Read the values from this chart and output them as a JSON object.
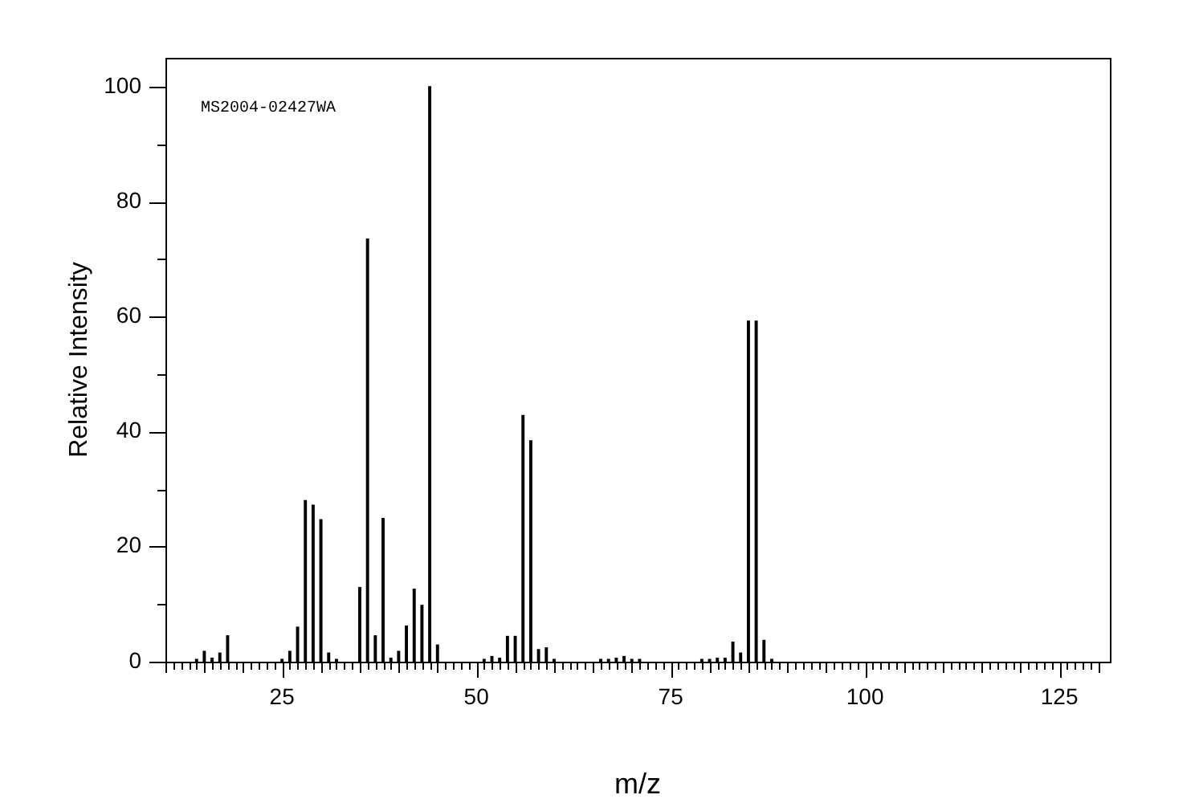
{
  "chart_data": {
    "type": "bar",
    "xlabel": "m/z",
    "ylabel": "Relative Intensity",
    "annotations": [
      "MS2004-02427WA"
    ],
    "color": "#000000",
    "x": [
      14,
      15,
      16,
      17,
      18,
      25,
      26,
      27,
      28,
      29,
      30,
      31,
      32,
      35,
      36,
      37,
      38,
      39,
      40,
      41,
      42,
      43,
      44,
      45,
      51,
      52,
      53,
      54,
      55,
      56,
      57,
      58,
      59,
      60,
      66,
      67,
      68,
      69,
      70,
      71,
      79,
      80,
      81,
      82,
      83,
      84,
      85,
      86,
      87,
      88
    ],
    "values": [
      0.4,
      1.8,
      0.6,
      1.5,
      4.5,
      0.4,
      1.8,
      6.0,
      28.0,
      27.2,
      24.7,
      1.5,
      0.4,
      12.9,
      73.5,
      4.5,
      24.9,
      0.6,
      1.8,
      6.2,
      12.6,
      9.8,
      100,
      2.9,
      0.4,
      0.9,
      0.6,
      4.4,
      4.4,
      42.8,
      38.4,
      2.1,
      2.4,
      0.4,
      0.4,
      0.4,
      0.6,
      0.9,
      0.4,
      0.4,
      0.4,
      0.4,
      0.6,
      0.6,
      3.4,
      1.5,
      59.2,
      59.2,
      3.7,
      0.4
    ],
    "xlim": [
      10,
      131.5
    ],
    "ylim": [
      0,
      105
    ],
    "xticks": [
      {
        "value": 10,
        "label": null
      },
      {
        "value": 11,
        "label": null
      },
      {
        "value": 12,
        "label": null
      },
      {
        "value": 13,
        "label": null
      },
      {
        "value": 14,
        "label": null
      },
      {
        "value": 15,
        "label": null
      },
      {
        "value": 16,
        "label": null
      },
      {
        "value": 17,
        "label": null
      },
      {
        "value": 18,
        "label": null
      },
      {
        "value": 19,
        "label": null
      },
      {
        "value": 20,
        "label": null
      },
      {
        "value": 21,
        "label": null
      },
      {
        "value": 22,
        "label": null
      },
      {
        "value": 23,
        "label": null
      },
      {
        "value": 24,
        "label": null
      },
      25,
      {
        "value": 26,
        "label": null
      },
      {
        "value": 27,
        "label": null
      },
      {
        "value": 28,
        "label": null
      },
      {
        "value": 29,
        "label": null
      },
      {
        "value": 30,
        "label": null
      },
      {
        "value": 31,
        "label": null
      },
      {
        "value": 32,
        "label": null
      },
      {
        "value": 33,
        "label": null
      },
      {
        "value": 34,
        "label": null
      },
      {
        "value": 35,
        "label": null
      },
      {
        "value": 36,
        "label": null
      },
      {
        "value": 37,
        "label": null
      },
      {
        "value": 38,
        "label": null
      },
      {
        "value": 39,
        "label": null
      },
      {
        "value": 40,
        "label": null
      },
      {
        "value": 41,
        "label": null
      },
      {
        "value": 42,
        "label": null
      },
      {
        "value": 43,
        "label": null
      },
      {
        "value": 44,
        "label": null
      },
      {
        "value": 45,
        "label": null
      },
      {
        "value": 46,
        "label": null
      },
      {
        "value": 47,
        "label": null
      },
      {
        "value": 48,
        "label": null
      },
      {
        "value": 49,
        "label": null
      },
      50,
      {
        "value": 51,
        "label": null
      },
      {
        "value": 52,
        "label": null
      },
      {
        "value": 53,
        "label": null
      },
      {
        "value": 54,
        "label": null
      },
      {
        "value": 55,
        "label": null
      },
      {
        "value": 56,
        "label": null
      },
      {
        "value": 57,
        "label": null
      },
      {
        "value": 58,
        "label": null
      },
      {
        "value": 59,
        "label": null
      },
      {
        "value": 60,
        "label": null
      },
      {
        "value": 61,
        "label": null
      },
      {
        "value": 62,
        "label": null
      },
      {
        "value": 63,
        "label": null
      },
      {
        "value": 64,
        "label": null
      },
      {
        "value": 65,
        "label": null
      },
      {
        "value": 66,
        "label": null
      },
      {
        "value": 67,
        "label": null
      },
      {
        "value": 68,
        "label": null
      },
      {
        "value": 69,
        "label": null
      },
      {
        "value": 70,
        "label": null
      },
      {
        "value": 71,
        "label": null
      },
      {
        "value": 72,
        "label": null
      },
      {
        "value": 73,
        "label": null
      },
      {
        "value": 74,
        "label": null
      },
      75,
      {
        "value": 76,
        "label": null
      },
      {
        "value": 77,
        "label": null
      },
      {
        "value": 78,
        "label": null
      },
      {
        "value": 79,
        "label": null
      },
      {
        "value": 80,
        "label": null
      },
      {
        "value": 81,
        "label": null
      },
      {
        "value": 82,
        "label": null
      },
      {
        "value": 83,
        "label": null
      },
      {
        "value": 84,
        "label": null
      },
      {
        "value": 85,
        "label": null
      },
      {
        "value": 86,
        "label": null
      },
      {
        "value": 87,
        "label": null
      },
      {
        "value": 88,
        "label": null
      },
      {
        "value": 89,
        "label": null
      },
      {
        "value": 90,
        "label": null
      },
      {
        "value": 91,
        "label": null
      },
      {
        "value": 92,
        "label": null
      },
      {
        "value": 93,
        "label": null
      },
      {
        "value": 94,
        "label": null
      },
      {
        "value": 95,
        "label": null
      },
      {
        "value": 96,
        "label": null
      },
      {
        "value": 97,
        "label": null
      },
      {
        "value": 98,
        "label": null
      },
      {
        "value": 99,
        "label": null
      },
      100,
      {
        "value": 101,
        "label": null
      },
      {
        "value": 102,
        "label": null
      },
      {
        "value": 103,
        "label": null
      },
      {
        "value": 104,
        "label": null
      },
      {
        "value": 105,
        "label": null
      },
      {
        "value": 106,
        "label": null
      },
      {
        "value": 107,
        "label": null
      },
      {
        "value": 108,
        "label": null
      },
      {
        "value": 109,
        "label": null
      },
      {
        "value": 110,
        "label": null
      },
      {
        "value": 111,
        "label": null
      },
      {
        "value": 112,
        "label": null
      },
      {
        "value": 113,
        "label": null
      },
      {
        "value": 114,
        "label": null
      },
      {
        "value": 115,
        "label": null
      },
      {
        "value": 116,
        "label": null
      },
      {
        "value": 117,
        "label": null
      },
      {
        "value": 118,
        "label": null
      },
      {
        "value": 119,
        "label": null
      },
      {
        "value": 120,
        "label": null
      },
      {
        "value": 121,
        "label": null
      },
      {
        "value": 122,
        "label": null
      },
      {
        "value": 123,
        "label": null
      },
      {
        "value": 124,
        "label": null
      },
      125,
      {
        "value": 126,
        "label": null
      },
      {
        "value": 127,
        "label": null
      },
      {
        "value": 128,
        "label": null
      },
      {
        "value": 129,
        "label": null
      },
      {
        "value": 130,
        "label": null
      }
    ],
    "yticks": [
      0,
      {
        "value": 10,
        "label": null
      },
      20,
      {
        "value": 30,
        "label": null
      },
      40,
      {
        "value": 50,
        "label": null
      },
      60,
      {
        "value": 70,
        "label": null
      },
      80,
      {
        "value": 90,
        "label": null
      },
      100
    ]
  }
}
